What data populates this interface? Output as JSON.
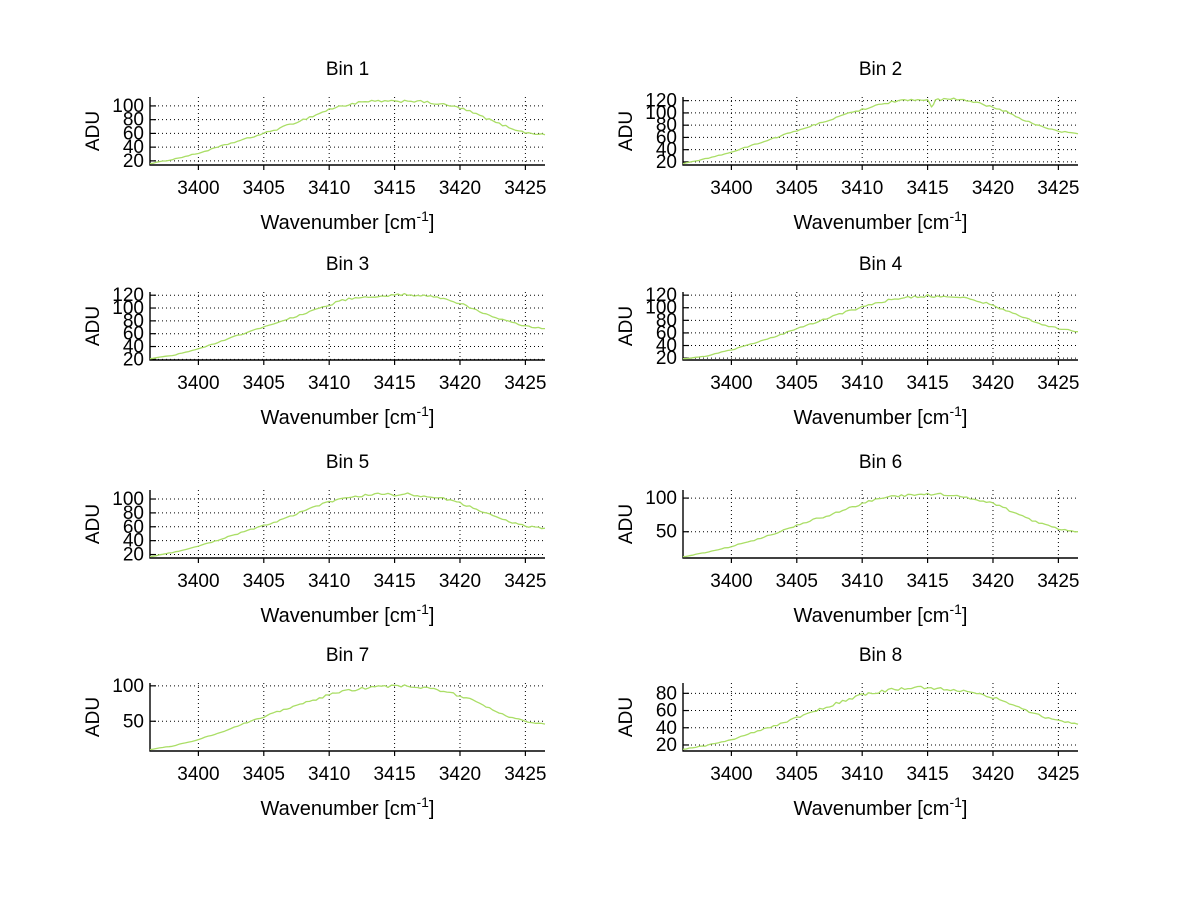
{
  "figure": {
    "background": "#ffffff",
    "line_color": "#aade66",
    "grid_color": "#000000",
    "axis_color": "#000000",
    "text_color": "#000000",
    "ylabel": "ADU",
    "xlabel": {
      "pre": "Wavenumber [cm",
      "sup": "-1",
      "post": "]"
    },
    "noise_amplitude": 1.6
  },
  "chart_data": [
    {
      "type": "line",
      "title": "Bin 1",
      "xlabel": "Wavenumber [cm^-1]",
      "ylabel": "ADU",
      "xlim": [
        3396.3,
        3426.5
      ],
      "ylim": [
        14,
        113
      ],
      "xticks": [
        3400,
        3405,
        3410,
        3415,
        3420,
        3425
      ],
      "yticks": [
        20,
        40,
        60,
        80,
        100
      ],
      "x": [
        3396.3,
        3398,
        3400,
        3402,
        3404,
        3406,
        3408,
        3409,
        3410,
        3411,
        3412,
        3413,
        3414,
        3415,
        3416,
        3417,
        3418,
        3419,
        3420,
        3421,
        3422,
        3423,
        3424,
        3425,
        3426.5
      ],
      "y": [
        16,
        22,
        31,
        43,
        54,
        66,
        80,
        87,
        95,
        100,
        104,
        106,
        107,
        106,
        108,
        106,
        104,
        101,
        97,
        90,
        82,
        74,
        67,
        61,
        58
      ]
    },
    {
      "type": "line",
      "title": "Bin 2",
      "xlabel": "Wavenumber [cm^-1]",
      "ylabel": "ADU",
      "xlim": [
        3396.3,
        3426.5
      ],
      "ylim": [
        15,
        126
      ],
      "xticks": [
        3400,
        3405,
        3410,
        3415,
        3420,
        3425
      ],
      "yticks": [
        20,
        40,
        60,
        80,
        100,
        120
      ],
      "x": [
        3396.3,
        3398,
        3400,
        3402,
        3404,
        3406,
        3408,
        3410,
        3411,
        3412,
        3413,
        3414,
        3415,
        3415.3,
        3415.6,
        3416,
        3417,
        3418,
        3419,
        3420,
        3421,
        3422,
        3423,
        3424,
        3425,
        3426.5
      ],
      "y": [
        17,
        25,
        36,
        50,
        64,
        78,
        92,
        106,
        112,
        117,
        120,
        122,
        121,
        108,
        121,
        122,
        123,
        120,
        115,
        110,
        102,
        92,
        83,
        76,
        70,
        66
      ]
    },
    {
      "type": "line",
      "title": "Bin 3",
      "xlabel": "Wavenumber [cm^-1]",
      "ylabel": "ADU",
      "xlim": [
        3396.3,
        3426.5
      ],
      "ylim": [
        19,
        125
      ],
      "xticks": [
        3400,
        3405,
        3410,
        3415,
        3420,
        3425
      ],
      "yticks": [
        20,
        40,
        60,
        80,
        100,
        120
      ],
      "x": [
        3396.3,
        3398,
        3400,
        3402,
        3404,
        3406,
        3408,
        3409,
        3410,
        3411,
        3412,
        3413,
        3414,
        3415,
        3416,
        3417,
        3418,
        3419,
        3420,
        3421,
        3422,
        3423,
        3424,
        3425,
        3426.5
      ],
      "y": [
        21,
        26,
        36,
        50,
        64,
        77,
        91,
        98,
        105,
        112,
        116,
        118,
        119,
        120,
        121,
        119,
        117,
        112,
        107,
        99,
        91,
        84,
        77,
        72,
        68
      ]
    },
    {
      "type": "line",
      "title": "Bin 4",
      "xlabel": "Wavenumber [cm^-1]",
      "ylabel": "ADU",
      "xlim": [
        3396.3,
        3426.5
      ],
      "ylim": [
        17,
        125
      ],
      "xticks": [
        3400,
        3405,
        3410,
        3415,
        3420,
        3425
      ],
      "yticks": [
        20,
        40,
        60,
        80,
        100,
        120
      ],
      "x": [
        3396.3,
        3398,
        3400,
        3402,
        3404,
        3406,
        3408,
        3409,
        3410,
        3411,
        3412,
        3413,
        3414,
        3415,
        3416,
        3417,
        3418,
        3419,
        3420,
        3421,
        3422,
        3423,
        3424,
        3425,
        3426.5
      ],
      "y": [
        19,
        23,
        33,
        45,
        59,
        74,
        88,
        95,
        101,
        107,
        112,
        115,
        117,
        119,
        118,
        117,
        115,
        110,
        104,
        96,
        87,
        79,
        72,
        67,
        62
      ]
    },
    {
      "type": "line",
      "title": "Bin 5",
      "xlabel": "Wavenumber [cm^-1]",
      "ylabel": "ADU",
      "xlim": [
        3396.3,
        3426.5
      ],
      "ylim": [
        15,
        113
      ],
      "xticks": [
        3400,
        3405,
        3410,
        3415,
        3420,
        3425
      ],
      "yticks": [
        20,
        40,
        60,
        80,
        100
      ],
      "x": [
        3396.3,
        3398,
        3400,
        3402,
        3404,
        3406,
        3408,
        3409,
        3410,
        3411,
        3412,
        3413,
        3414,
        3415,
        3416,
        3417,
        3418,
        3419,
        3420,
        3421,
        3422,
        3423,
        3424,
        3425,
        3426.5
      ],
      "y": [
        17,
        23,
        32,
        44,
        56,
        68,
        82,
        89,
        96,
        101,
        104,
        106,
        108,
        106,
        107,
        105,
        103,
        99,
        94,
        88,
        80,
        73,
        66,
        61,
        58
      ]
    },
    {
      "type": "line",
      "title": "Bin 6",
      "xlabel": "Wavenumber [cm^-1]",
      "ylabel": "ADU",
      "xlim": [
        3396.3,
        3426.5
      ],
      "ylim": [
        11,
        112
      ],
      "xticks": [
        3400,
        3405,
        3410,
        3415,
        3420,
        3425
      ],
      "yticks": [
        50,
        100
      ],
      "x": [
        3396.3,
        3398,
        3400,
        3402,
        3404,
        3406,
        3408,
        3409,
        3410,
        3411,
        3412,
        3413,
        3414,
        3415,
        3416,
        3417,
        3418,
        3419,
        3420,
        3421,
        3422,
        3423,
        3424,
        3425,
        3426.5
      ],
      "y": [
        13,
        19,
        28,
        39,
        52,
        66,
        78,
        85,
        92,
        97,
        102,
        104,
        105,
        106,
        106,
        103,
        100,
        97,
        92,
        84,
        75,
        67,
        60,
        54,
        50
      ]
    },
    {
      "type": "line",
      "title": "Bin 7",
      "xlabel": "Wavenumber [cm^-1]",
      "ylabel": "ADU",
      "xlim": [
        3396.3,
        3426.5
      ],
      "ylim": [
        8,
        104
      ],
      "xticks": [
        3400,
        3405,
        3410,
        3415,
        3420,
        3425
      ],
      "yticks": [
        50,
        100
      ],
      "x": [
        3396.3,
        3398,
        3400,
        3402,
        3404,
        3406,
        3408,
        3409,
        3410,
        3411,
        3412,
        3413,
        3414,
        3415,
        3416,
        3417,
        3418,
        3419,
        3420,
        3421,
        3422,
        3423,
        3424,
        3425,
        3426.5
      ],
      "y": [
        10,
        15,
        24,
        36,
        50,
        63,
        75,
        81,
        87,
        92,
        95,
        97,
        99,
        100,
        100,
        98,
        95,
        91,
        86,
        79,
        71,
        62,
        55,
        50,
        46
      ]
    },
    {
      "type": "line",
      "title": "Bin 8",
      "xlabel": "Wavenumber [cm^-1]",
      "ylabel": "ADU",
      "xlim": [
        3396.3,
        3426.5
      ],
      "ylim": [
        13,
        92
      ],
      "xticks": [
        3400,
        3405,
        3410,
        3415,
        3420,
        3425
      ],
      "yticks": [
        20,
        40,
        60,
        80
      ],
      "x": [
        3396.3,
        3398,
        3400,
        3402,
        3404,
        3406,
        3408,
        3409,
        3410,
        3411,
        3412,
        3413,
        3414,
        3415,
        3416,
        3417,
        3418,
        3419,
        3420,
        3421,
        3422,
        3423,
        3424,
        3425,
        3426.5
      ],
      "y": [
        15,
        19,
        26,
        36,
        46,
        57,
        68,
        73,
        78,
        81,
        84,
        86,
        87,
        86,
        86,
        84,
        82,
        79,
        75,
        70,
        63,
        57,
        52,
        48,
        44
      ]
    }
  ],
  "layout_positions": {
    "row_tops": [
      50,
      245,
      443,
      636
    ],
    "col_lefts": [
      55,
      588
    ]
  }
}
